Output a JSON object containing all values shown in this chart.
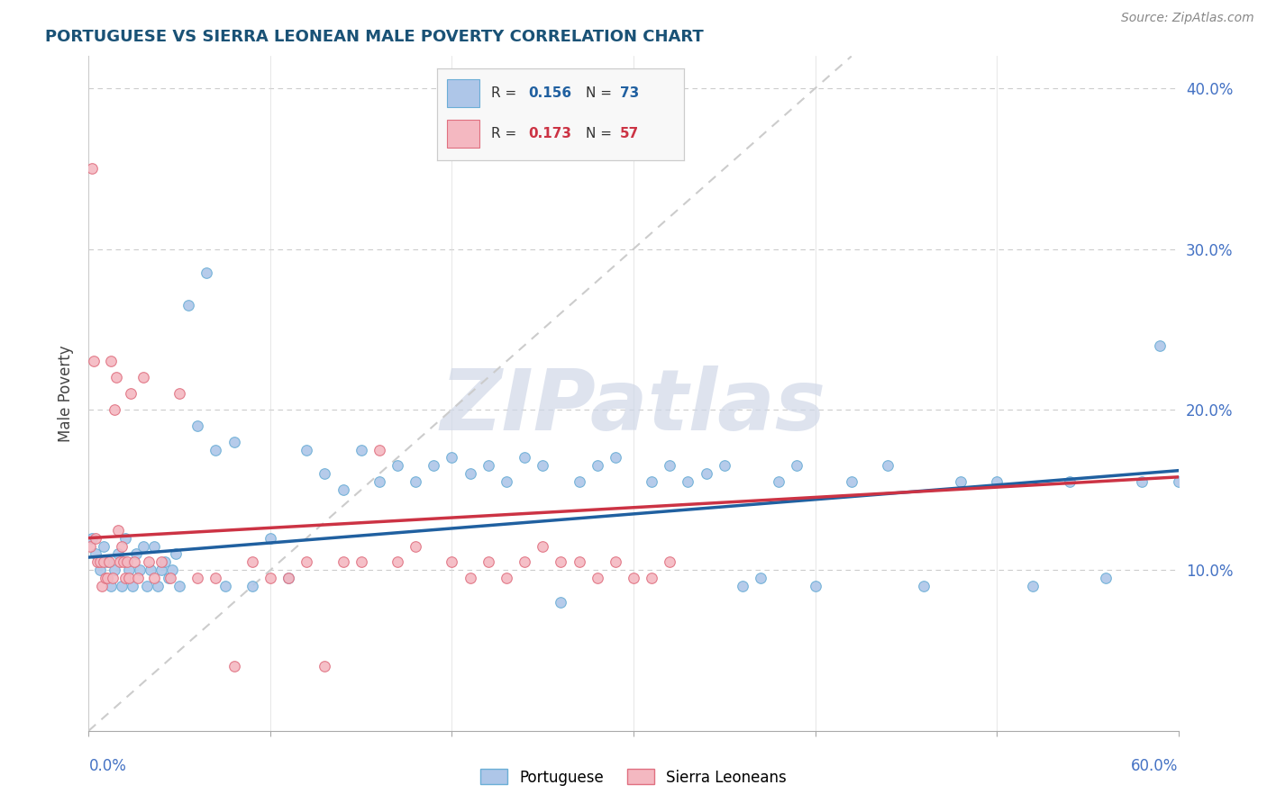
{
  "title": "PORTUGUESE VS SIERRA LEONEAN MALE POVERTY CORRELATION CHART",
  "source": "Source: ZipAtlas.com",
  "ylabel": "Male Poverty",
  "xlim": [
    0,
    0.6
  ],
  "ylim": [
    0,
    0.42
  ],
  "yticks": [
    0.0,
    0.1,
    0.2,
    0.3,
    0.4
  ],
  "ytick_labels_right": [
    "",
    "10.0%",
    "20.0%",
    "30.0%",
    "40.0%"
  ],
  "xticks": [
    0.0,
    0.1,
    0.2,
    0.3,
    0.4,
    0.5,
    0.6
  ],
  "portuguese_color": "#aec6e8",
  "portuguese_edge": "#6baed6",
  "sierra_color": "#f4b8c1",
  "sierra_edge": "#e07080",
  "trend_portuguese_color": "#2060a0",
  "trend_sierra_color": "#cc3344",
  "diag_color": "#cccccc",
  "watermark": "ZIPatlas",
  "legend_box_color": "#f5f5f5",
  "portuguese_x": [
    0.002,
    0.004,
    0.006,
    0.008,
    0.01,
    0.012,
    0.014,
    0.016,
    0.018,
    0.02,
    0.022,
    0.024,
    0.026,
    0.028,
    0.03,
    0.032,
    0.034,
    0.036,
    0.038,
    0.04,
    0.042,
    0.044,
    0.046,
    0.048,
    0.05,
    0.055,
    0.06,
    0.065,
    0.07,
    0.075,
    0.08,
    0.09,
    0.1,
    0.11,
    0.12,
    0.13,
    0.14,
    0.15,
    0.16,
    0.17,
    0.18,
    0.19,
    0.2,
    0.21,
    0.22,
    0.23,
    0.24,
    0.25,
    0.26,
    0.27,
    0.28,
    0.29,
    0.31,
    0.32,
    0.33,
    0.34,
    0.36,
    0.38,
    0.4,
    0.42,
    0.44,
    0.46,
    0.48,
    0.5,
    0.52,
    0.54,
    0.56,
    0.58,
    0.59,
    0.6,
    0.35,
    0.37,
    0.39
  ],
  "portuguese_y": [
    0.12,
    0.11,
    0.1,
    0.115,
    0.105,
    0.09,
    0.1,
    0.11,
    0.09,
    0.12,
    0.1,
    0.09,
    0.11,
    0.1,
    0.115,
    0.09,
    0.1,
    0.115,
    0.09,
    0.1,
    0.105,
    0.095,
    0.1,
    0.11,
    0.09,
    0.265,
    0.19,
    0.285,
    0.175,
    0.09,
    0.18,
    0.09,
    0.12,
    0.095,
    0.175,
    0.16,
    0.15,
    0.175,
    0.155,
    0.165,
    0.155,
    0.165,
    0.17,
    0.16,
    0.165,
    0.155,
    0.17,
    0.165,
    0.08,
    0.155,
    0.165,
    0.17,
    0.155,
    0.165,
    0.155,
    0.16,
    0.09,
    0.155,
    0.09,
    0.155,
    0.165,
    0.09,
    0.155,
    0.155,
    0.09,
    0.155,
    0.095,
    0.155,
    0.24,
    0.155,
    0.165,
    0.095,
    0.165
  ],
  "sierra_x": [
    0.001,
    0.002,
    0.003,
    0.004,
    0.005,
    0.006,
    0.007,
    0.008,
    0.009,
    0.01,
    0.011,
    0.012,
    0.013,
    0.014,
    0.015,
    0.016,
    0.017,
    0.018,
    0.019,
    0.02,
    0.021,
    0.022,
    0.023,
    0.025,
    0.027,
    0.03,
    0.033,
    0.036,
    0.04,
    0.045,
    0.05,
    0.06,
    0.07,
    0.08,
    0.09,
    0.1,
    0.11,
    0.12,
    0.13,
    0.14,
    0.15,
    0.16,
    0.17,
    0.18,
    0.2,
    0.21,
    0.22,
    0.23,
    0.24,
    0.25,
    0.26,
    0.27,
    0.28,
    0.29,
    0.3,
    0.31,
    0.32
  ],
  "sierra_y": [
    0.115,
    0.35,
    0.23,
    0.12,
    0.105,
    0.105,
    0.09,
    0.105,
    0.095,
    0.095,
    0.105,
    0.23,
    0.095,
    0.2,
    0.22,
    0.125,
    0.105,
    0.115,
    0.105,
    0.095,
    0.105,
    0.095,
    0.21,
    0.105,
    0.095,
    0.22,
    0.105,
    0.095,
    0.105,
    0.095,
    0.21,
    0.095,
    0.095,
    0.04,
    0.105,
    0.095,
    0.095,
    0.105,
    0.04,
    0.105,
    0.105,
    0.175,
    0.105,
    0.115,
    0.105,
    0.095,
    0.105,
    0.095,
    0.105,
    0.115,
    0.105,
    0.105,
    0.095,
    0.105,
    0.095,
    0.095,
    0.105
  ],
  "trend_portuguese_start_y": 0.108,
  "trend_portuguese_end_y": 0.162,
  "trend_sierra_start_y": 0.12,
  "trend_sierra_end_y": 0.158
}
